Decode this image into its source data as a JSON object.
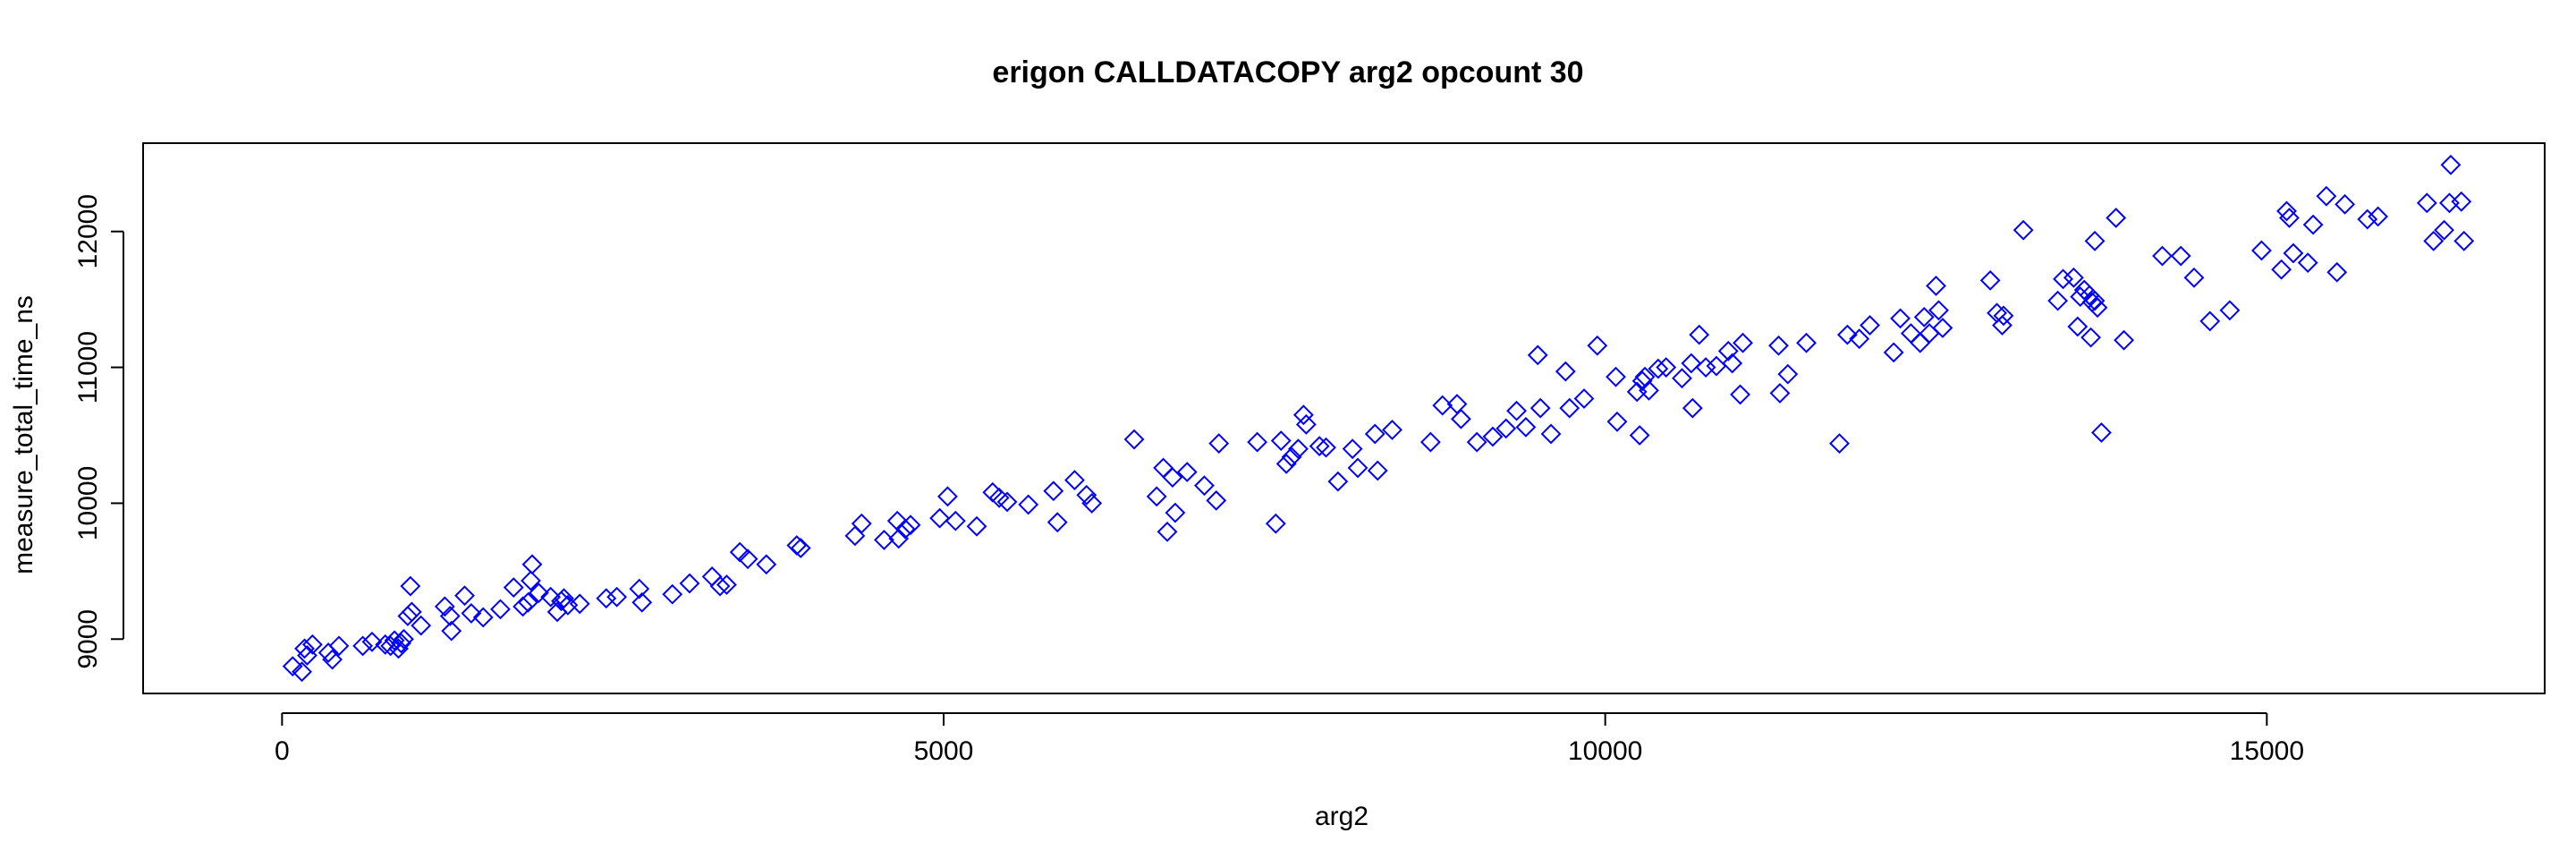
{
  "chart_data": {
    "type": "scatter",
    "title": "erigon CALLDATACOPY arg2 opcount 30",
    "xlabel": "arg2",
    "ylabel": "measure_total_time_ns",
    "xlim": [
      -1050,
      17100
    ],
    "ylim": [
      8600,
      12650
    ],
    "xticks": [
      0,
      5000,
      10000,
      15000
    ],
    "yticks": [
      9000,
      10000,
      11000,
      12000
    ],
    "grid": false,
    "legend": "none",
    "marker": "diamond",
    "point_color": "#0000ff",
    "points": [
      [
        80,
        8800
      ],
      [
        150,
        8760
      ],
      [
        170,
        8930
      ],
      [
        190,
        8880
      ],
      [
        230,
        8960
      ],
      [
        350,
        8900
      ],
      [
        380,
        8850
      ],
      [
        430,
        8950
      ],
      [
        610,
        8950
      ],
      [
        680,
        8980
      ],
      [
        780,
        8960
      ],
      [
        820,
        8950
      ],
      [
        850,
        8990
      ],
      [
        880,
        8930
      ],
      [
        900,
        8970
      ],
      [
        920,
        9000
      ],
      [
        950,
        9170
      ],
      [
        970,
        9390
      ],
      [
        980,
        9200
      ],
      [
        1050,
        9100
      ],
      [
        1230,
        9240
      ],
      [
        1270,
        9170
      ],
      [
        1280,
        9060
      ],
      [
        1380,
        9320
      ],
      [
        1430,
        9190
      ],
      [
        1520,
        9160
      ],
      [
        1650,
        9220
      ],
      [
        1750,
        9380
      ],
      [
        1820,
        9240
      ],
      [
        1860,
        9270
      ],
      [
        1880,
        9430
      ],
      [
        1890,
        9550
      ],
      [
        1940,
        9340
      ],
      [
        2030,
        9310
      ],
      [
        2080,
        9200
      ],
      [
        2110,
        9280
      ],
      [
        2130,
        9300
      ],
      [
        2160,
        9250
      ],
      [
        2250,
        9260
      ],
      [
        2450,
        9300
      ],
      [
        2530,
        9310
      ],
      [
        2700,
        9370
      ],
      [
        2720,
        9270
      ],
      [
        2950,
        9330
      ],
      [
        3080,
        9410
      ],
      [
        3250,
        9460
      ],
      [
        3310,
        9390
      ],
      [
        3360,
        9400
      ],
      [
        3460,
        9640
      ],
      [
        3520,
        9590
      ],
      [
        3660,
        9550
      ],
      [
        3890,
        9690
      ],
      [
        3920,
        9670
      ],
      [
        4330,
        9760
      ],
      [
        4380,
        9850
      ],
      [
        4550,
        9730
      ],
      [
        4650,
        9870
      ],
      [
        4660,
        9740
      ],
      [
        4710,
        9810
      ],
      [
        4750,
        9840
      ],
      [
        4970,
        9890
      ],
      [
        5030,
        10050
      ],
      [
        5090,
        9870
      ],
      [
        5250,
        9830
      ],
      [
        5370,
        10080
      ],
      [
        5420,
        10040
      ],
      [
        5480,
        10010
      ],
      [
        5640,
        9990
      ],
      [
        5830,
        10090
      ],
      [
        5860,
        9860
      ],
      [
        5990,
        10170
      ],
      [
        6080,
        10060
      ],
      [
        6120,
        10000
      ],
      [
        6440,
        10470
      ],
      [
        6610,
        10050
      ],
      [
        6660,
        10260
      ],
      [
        6690,
        9790
      ],
      [
        6730,
        10190
      ],
      [
        6750,
        9930
      ],
      [
        6840,
        10230
      ],
      [
        6970,
        10130
      ],
      [
        7060,
        10020
      ],
      [
        7080,
        10440
      ],
      [
        7370,
        10450
      ],
      [
        7510,
        9850
      ],
      [
        7550,
        10460
      ],
      [
        7590,
        10290
      ],
      [
        7630,
        10340
      ],
      [
        7680,
        10400
      ],
      [
        7720,
        10650
      ],
      [
        7740,
        10580
      ],
      [
        7840,
        10420
      ],
      [
        7890,
        10410
      ],
      [
        7980,
        10160
      ],
      [
        8090,
        10400
      ],
      [
        8130,
        10260
      ],
      [
        8260,
        10510
      ],
      [
        8280,
        10240
      ],
      [
        8390,
        10540
      ],
      [
        8680,
        10450
      ],
      [
        8770,
        10720
      ],
      [
        8880,
        10730
      ],
      [
        8910,
        10620
      ],
      [
        9030,
        10450
      ],
      [
        9150,
        10490
      ],
      [
        9250,
        10550
      ],
      [
        9330,
        10680
      ],
      [
        9400,
        10560
      ],
      [
        9490,
        11090
      ],
      [
        9510,
        10700
      ],
      [
        9590,
        10510
      ],
      [
        9700,
        10970
      ],
      [
        9730,
        10700
      ],
      [
        9840,
        10770
      ],
      [
        9940,
        11160
      ],
      [
        10080,
        10930
      ],
      [
        10090,
        10600
      ],
      [
        10240,
        10820
      ],
      [
        10260,
        10500
      ],
      [
        10280,
        10900
      ],
      [
        10300,
        10930
      ],
      [
        10330,
        10830
      ],
      [
        10400,
        10990
      ],
      [
        10460,
        11000
      ],
      [
        10580,
        10920
      ],
      [
        10650,
        11030
      ],
      [
        10660,
        10700
      ],
      [
        10710,
        11240
      ],
      [
        10760,
        11000
      ],
      [
        10840,
        11010
      ],
      [
        10930,
        11120
      ],
      [
        10960,
        11030
      ],
      [
        11020,
        10800
      ],
      [
        11040,
        11180
      ],
      [
        11310,
        11160
      ],
      [
        11320,
        10810
      ],
      [
        11380,
        10950
      ],
      [
        11520,
        11180
      ],
      [
        11770,
        10440
      ],
      [
        11830,
        11240
      ],
      [
        11920,
        11210
      ],
      [
        12000,
        11310
      ],
      [
        12180,
        11110
      ],
      [
        12230,
        11360
      ],
      [
        12310,
        11250
      ],
      [
        12380,
        11180
      ],
      [
        12410,
        11370
      ],
      [
        12450,
        11250
      ],
      [
        12500,
        11600
      ],
      [
        12520,
        11420
      ],
      [
        12550,
        11290
      ],
      [
        12910,
        11640
      ],
      [
        12960,
        11400
      ],
      [
        13000,
        11310
      ],
      [
        13010,
        11380
      ],
      [
        13160,
        12010
      ],
      [
        13420,
        11490
      ],
      [
        13460,
        11650
      ],
      [
        13540,
        11660
      ],
      [
        13570,
        11300
      ],
      [
        13590,
        11520
      ],
      [
        13620,
        11570
      ],
      [
        13660,
        11530
      ],
      [
        13670,
        11220
      ],
      [
        13680,
        11480
      ],
      [
        13700,
        11490
      ],
      [
        13720,
        11440
      ],
      [
        13700,
        11930
      ],
      [
        13750,
        10520
      ],
      [
        13860,
        12100
      ],
      [
        13920,
        11200
      ],
      [
        14210,
        11820
      ],
      [
        14350,
        11820
      ],
      [
        14450,
        11660
      ],
      [
        14570,
        11340
      ],
      [
        14720,
        11420
      ],
      [
        14960,
        11860
      ],
      [
        15110,
        11720
      ],
      [
        15150,
        12150
      ],
      [
        15170,
        12100
      ],
      [
        15200,
        11840
      ],
      [
        15310,
        11770
      ],
      [
        15350,
        12050
      ],
      [
        15450,
        12260
      ],
      [
        15530,
        11700
      ],
      [
        15590,
        12200
      ],
      [
        15760,
        12090
      ],
      [
        15840,
        12110
      ],
      [
        16210,
        12210
      ],
      [
        16260,
        11930
      ],
      [
        16340,
        12010
      ],
      [
        16380,
        12210
      ],
      [
        16390,
        12490
      ],
      [
        16470,
        12220
      ],
      [
        16490,
        11930
      ]
    ]
  }
}
